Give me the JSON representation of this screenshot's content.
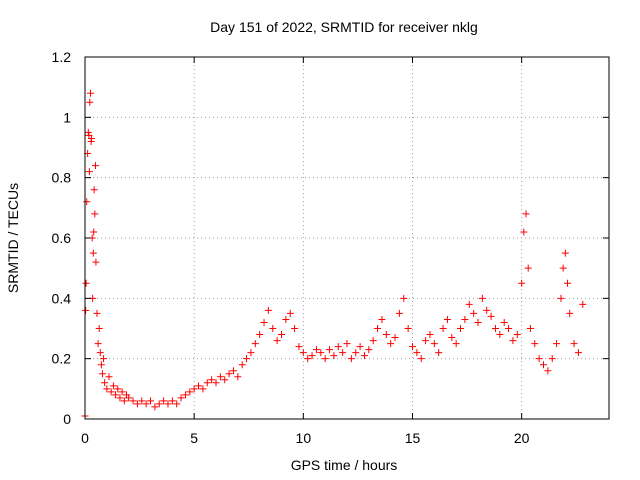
{
  "chart_data": {
    "type": "scatter",
    "title": "Day 151 of 2022, SRMTID for receiver nklg",
    "xlabel": "GPS time / hours",
    "ylabel": "SRMTID / TECUs",
    "xlim": [
      0,
      24
    ],
    "ylim": [
      0,
      1.2
    ],
    "x_ticks": [
      {
        "value": 0,
        "label": "0"
      },
      {
        "value": 5,
        "label": "5"
      },
      {
        "value": 10,
        "label": "10"
      },
      {
        "value": 15,
        "label": "15"
      },
      {
        "value": 20,
        "label": "20"
      }
    ],
    "y_ticks": [
      {
        "value": 0,
        "label": "0"
      },
      {
        "value": 0.2,
        "label": "0.2"
      },
      {
        "value": 0.4,
        "label": "0.4"
      },
      {
        "value": 0.6,
        "label": "0.6"
      },
      {
        "value": 0.8,
        "label": "0.8"
      },
      {
        "value": 1.0,
        "label": "1"
      },
      {
        "value": 1.2,
        "label": "1.2"
      }
    ],
    "grid": true,
    "marker": "+",
    "color": "#ff0000",
    "series": [
      {
        "name": "SRMTID",
        "points": [
          [
            0.0,
            0.01
          ],
          [
            0.03,
            0.36
          ],
          [
            0.05,
            0.45
          ],
          [
            0.08,
            0.72
          ],
          [
            0.12,
            0.88
          ],
          [
            0.15,
            0.95
          ],
          [
            0.18,
            0.94
          ],
          [
            0.2,
            0.82
          ],
          [
            0.22,
            1.05
          ],
          [
            0.25,
            1.08
          ],
          [
            0.28,
            0.92
          ],
          [
            0.3,
            0.93
          ],
          [
            0.33,
            0.6
          ],
          [
            0.35,
            0.4
          ],
          [
            0.38,
            0.55
          ],
          [
            0.4,
            0.62
          ],
          [
            0.42,
            0.76
          ],
          [
            0.45,
            0.68
          ],
          [
            0.48,
            0.84
          ],
          [
            0.5,
            0.52
          ],
          [
            0.55,
            0.35
          ],
          [
            0.6,
            0.25
          ],
          [
            0.65,
            0.3
          ],
          [
            0.7,
            0.22
          ],
          [
            0.75,
            0.18
          ],
          [
            0.8,
            0.15
          ],
          [
            0.85,
            0.2
          ],
          [
            0.9,
            0.12
          ],
          [
            1.0,
            0.1
          ],
          [
            1.1,
            0.14
          ],
          [
            1.2,
            0.09
          ],
          [
            1.3,
            0.11
          ],
          [
            1.4,
            0.08
          ],
          [
            1.5,
            0.1
          ],
          [
            1.6,
            0.07
          ],
          [
            1.7,
            0.09
          ],
          [
            1.8,
            0.06
          ],
          [
            1.9,
            0.08
          ],
          [
            2.0,
            0.07
          ],
          [
            2.2,
            0.06
          ],
          [
            2.4,
            0.05
          ],
          [
            2.6,
            0.06
          ],
          [
            2.8,
            0.05
          ],
          [
            3.0,
            0.06
          ],
          [
            3.2,
            0.04
          ],
          [
            3.4,
            0.05
          ],
          [
            3.6,
            0.06
          ],
          [
            3.8,
            0.05
          ],
          [
            4.0,
            0.06
          ],
          [
            4.2,
            0.05
          ],
          [
            4.4,
            0.07
          ],
          [
            4.6,
            0.08
          ],
          [
            4.8,
            0.09
          ],
          [
            5.0,
            0.1
          ],
          [
            5.2,
            0.11
          ],
          [
            5.4,
            0.1
          ],
          [
            5.6,
            0.12
          ],
          [
            5.8,
            0.13
          ],
          [
            6.0,
            0.12
          ],
          [
            6.2,
            0.14
          ],
          [
            6.4,
            0.13
          ],
          [
            6.6,
            0.15
          ],
          [
            6.8,
            0.16
          ],
          [
            7.0,
            0.14
          ],
          [
            7.2,
            0.18
          ],
          [
            7.4,
            0.2
          ],
          [
            7.6,
            0.22
          ],
          [
            7.8,
            0.25
          ],
          [
            8.0,
            0.28
          ],
          [
            8.2,
            0.32
          ],
          [
            8.4,
            0.36
          ],
          [
            8.6,
            0.3
          ],
          [
            8.8,
            0.26
          ],
          [
            9.0,
            0.28
          ],
          [
            9.2,
            0.33
          ],
          [
            9.4,
            0.35
          ],
          [
            9.6,
            0.3
          ],
          [
            9.8,
            0.24
          ],
          [
            10.0,
            0.22
          ],
          [
            10.2,
            0.2
          ],
          [
            10.4,
            0.21
          ],
          [
            10.6,
            0.23
          ],
          [
            10.8,
            0.22
          ],
          [
            11.0,
            0.2
          ],
          [
            11.2,
            0.23
          ],
          [
            11.4,
            0.21
          ],
          [
            11.6,
            0.24
          ],
          [
            11.8,
            0.22
          ],
          [
            12.0,
            0.25
          ],
          [
            12.2,
            0.2
          ],
          [
            12.4,
            0.22
          ],
          [
            12.6,
            0.24
          ],
          [
            12.8,
            0.21
          ],
          [
            13.0,
            0.23
          ],
          [
            13.2,
            0.26
          ],
          [
            13.4,
            0.3
          ],
          [
            13.6,
            0.33
          ],
          [
            13.8,
            0.28
          ],
          [
            14.0,
            0.25
          ],
          [
            14.2,
            0.27
          ],
          [
            14.4,
            0.35
          ],
          [
            14.6,
            0.4
          ],
          [
            14.8,
            0.3
          ],
          [
            15.0,
            0.24
          ],
          [
            15.2,
            0.22
          ],
          [
            15.4,
            0.2
          ],
          [
            15.6,
            0.26
          ],
          [
            15.8,
            0.28
          ],
          [
            16.0,
            0.25
          ],
          [
            16.2,
            0.22
          ],
          [
            16.4,
            0.3
          ],
          [
            16.6,
            0.33
          ],
          [
            16.8,
            0.27
          ],
          [
            17.0,
            0.25
          ],
          [
            17.2,
            0.3
          ],
          [
            17.4,
            0.33
          ],
          [
            17.6,
            0.38
          ],
          [
            17.8,
            0.35
          ],
          [
            18.0,
            0.32
          ],
          [
            18.2,
            0.4
          ],
          [
            18.4,
            0.36
          ],
          [
            18.6,
            0.34
          ],
          [
            18.8,
            0.3
          ],
          [
            19.0,
            0.28
          ],
          [
            19.2,
            0.32
          ],
          [
            19.4,
            0.3
          ],
          [
            19.6,
            0.26
          ],
          [
            19.8,
            0.28
          ],
          [
            20.0,
            0.45
          ],
          [
            20.1,
            0.62
          ],
          [
            20.2,
            0.68
          ],
          [
            20.3,
            0.5
          ],
          [
            20.4,
            0.3
          ],
          [
            20.6,
            0.25
          ],
          [
            20.8,
            0.2
          ],
          [
            21.0,
            0.18
          ],
          [
            21.2,
            0.16
          ],
          [
            21.4,
            0.2
          ],
          [
            21.6,
            0.25
          ],
          [
            21.8,
            0.4
          ],
          [
            21.9,
            0.5
          ],
          [
            22.0,
            0.55
          ],
          [
            22.1,
            0.45
          ],
          [
            22.2,
            0.35
          ],
          [
            22.4,
            0.25
          ],
          [
            22.6,
            0.22
          ],
          [
            22.8,
            0.38
          ]
        ]
      }
    ]
  }
}
